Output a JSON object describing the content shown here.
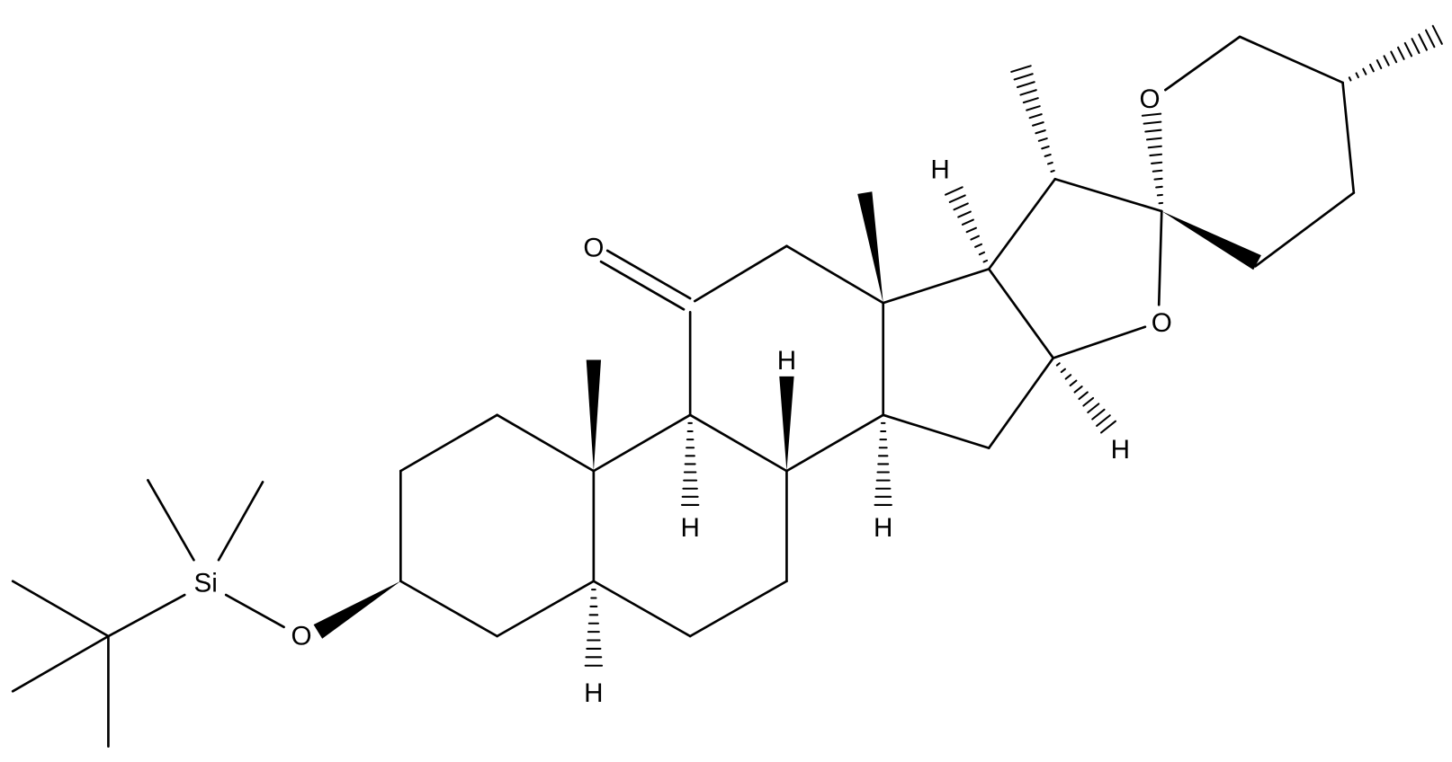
{
  "atoms": [
    {
      "label": "O"
    },
    {
      "label": "O"
    },
    {
      "label": "O"
    },
    {
      "label": "O"
    },
    {
      "label": "Si"
    },
    {
      "label": "H"
    },
    {
      "label": "H"
    },
    {
      "label": "H"
    },
    {
      "label": "H"
    },
    {
      "label": "H"
    },
    {
      "label": "H"
    }
  ]
}
